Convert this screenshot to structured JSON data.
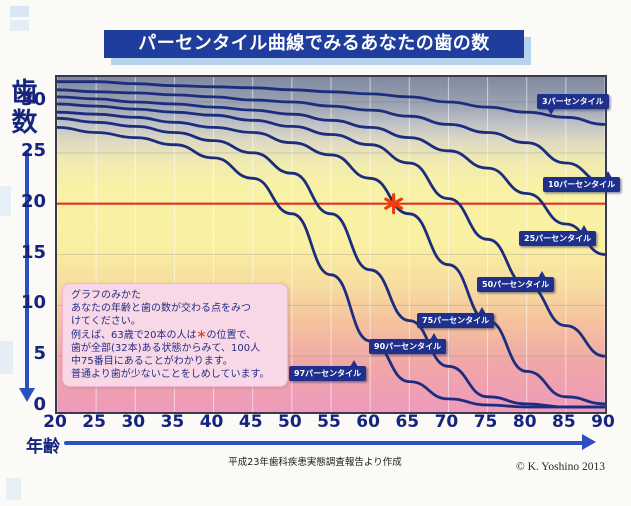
{
  "page": {
    "title": "パーセンタイル曲線でみるあなたの歯の数",
    "y_axis_title": "歯数",
    "x_axis_title": "年齢",
    "source_caption": "平成23年歯科疾患実態調査報告より作成",
    "copyright": "© K. Yoshino 2013"
  },
  "note": {
    "heading": "グラフのみかた",
    "l1": "あなたの年齢と歯の数が交わる点をみつ",
    "l2": "けてください。",
    "l3a": "例えば、63歳で20本の人は",
    "star": "＊",
    "l3b": "の位置で、",
    "l4": "歯が全部(32本)ある状態からみて、100人",
    "l5": "中75番目にあることがわかります。",
    "l6": "普通より歯が少ないことをしめしています。"
  },
  "colors": {
    "navy": "#1e2f8c",
    "curve": "#1d2d7e",
    "reference_red": "#e23028",
    "marker_red": "#ee3b0f",
    "banner_blue": "#1e3d9c",
    "banner_shadow": "#b5d3ec",
    "note_pink": "#f8d8e6"
  },
  "chart_data": {
    "type": "line",
    "title": "パーセンタイル曲線でみるあなたの歯の数",
    "xlabel": "年齢",
    "ylabel": "歯数",
    "x": [
      20,
      25,
      30,
      35,
      40,
      45,
      50,
      55,
      60,
      65,
      70,
      75,
      80,
      85,
      90
    ],
    "xlim": [
      20,
      90
    ],
    "ylim": [
      0,
      32.5
    ],
    "yticks": [
      0,
      5,
      10,
      15,
      20,
      25,
      30
    ],
    "grid": true,
    "curve_color": "#1d2d7e",
    "series": [
      {
        "name": "3パーセンタイル",
        "values": [
          32,
          32,
          31.8,
          31.6,
          31.5,
          31.4,
          31.2,
          31,
          30.8,
          30.5,
          30,
          29.5,
          29,
          28.5,
          27.8
        ]
      },
      {
        "name": "10パーセンタイル",
        "values": [
          31.2,
          31,
          30.9,
          30.7,
          30.5,
          30.2,
          30,
          29.6,
          29.2,
          28.6,
          27.8,
          27,
          26,
          24,
          22
        ]
      },
      {
        "name": "25パーセンタイル",
        "values": [
          30.5,
          30.3,
          30,
          29.8,
          29.5,
          29.2,
          28.8,
          28.2,
          27.5,
          26.5,
          25.2,
          23.5,
          21,
          18,
          15
        ]
      },
      {
        "name": "50パーセンタイル",
        "values": [
          29.8,
          29.6,
          29.3,
          29,
          28.7,
          28.2,
          27.6,
          26.8,
          25.8,
          24,
          20.5,
          16.5,
          12,
          8,
          5
        ]
      },
      {
        "name": "75パーセンタイル",
        "values": [
          29,
          28.8,
          28.5,
          28,
          27.5,
          27,
          26,
          24.8,
          22.5,
          19,
          14,
          8.5,
          3.5,
          1,
          0.3
        ]
      },
      {
        "name": "90パーセンタイル",
        "values": [
          28.4,
          28,
          27.6,
          27,
          26.2,
          25,
          23,
          19,
          13.5,
          8.5,
          4,
          1,
          0.3,
          0,
          0
        ]
      },
      {
        "name": "97パーセンタイル",
        "values": [
          27.5,
          27,
          26.5,
          25.8,
          24.5,
          22.5,
          19,
          13,
          6.5,
          2.5,
          0.8,
          0.2,
          0,
          0,
          0
        ]
      }
    ],
    "reference_line": {
      "y": 20,
      "color": "#e23028"
    },
    "marker": {
      "x": 63,
      "y": 20,
      "symbol": "＊",
      "color": "#ee3b0f"
    }
  }
}
